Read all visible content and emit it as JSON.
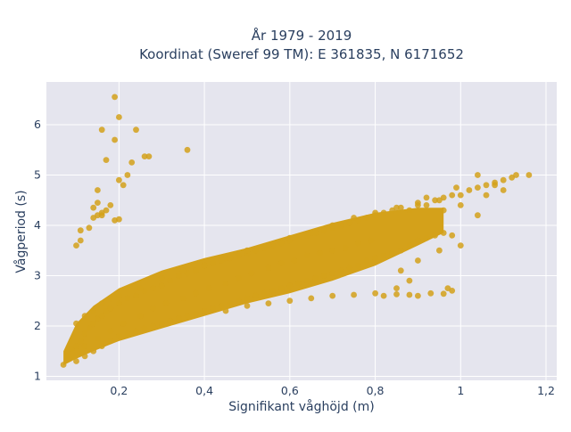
{
  "chart_data": {
    "type": "scatter",
    "title_line1": "År 1979 - 2019",
    "title_line2": "Koordinat (Sweref 99 TM): E 361835, N 6171652",
    "xlabel": "Signifikant våghöjd (m)",
    "ylabel": "Vågperiod (s)",
    "xlim": [
      0.03,
      1.225
    ],
    "ylim": [
      0.92,
      6.85
    ],
    "x_ticks": [
      0.2,
      0.4,
      0.6,
      0.8,
      1.0,
      1.2
    ],
    "x_tick_labels": [
      "0,2",
      "0,4",
      "0,6",
      "0,8",
      "1",
      "1,2"
    ],
    "y_ticks": [
      1,
      2,
      3,
      4,
      5,
      6
    ],
    "y_tick_labels": [
      "1",
      "2",
      "3",
      "4",
      "5",
      "6"
    ],
    "grid": true,
    "marker_color": "#d4a11a",
    "plot_bg": "#e5e5ee",
    "points": [
      [
        0.07,
        1.23
      ],
      [
        0.08,
        1.4
      ],
      [
        0.09,
        1.55
      ],
      [
        0.1,
        1.6
      ],
      [
        0.11,
        1.7
      ],
      [
        0.12,
        1.85
      ],
      [
        0.13,
        1.95
      ],
      [
        0.14,
        2.05
      ],
      [
        0.15,
        2.15
      ],
      [
        0.16,
        2.2
      ],
      [
        0.17,
        2.3
      ],
      [
        0.18,
        2.35
      ],
      [
        0.2,
        2.45
      ],
      [
        0.22,
        2.55
      ],
      [
        0.24,
        2.6
      ],
      [
        0.26,
        2.7
      ],
      [
        0.28,
        2.75
      ],
      [
        0.3,
        2.8
      ],
      [
        0.32,
        2.9
      ],
      [
        0.34,
        3.0
      ],
      [
        0.36,
        3.05
      ],
      [
        0.38,
        3.1
      ],
      [
        0.4,
        3.2
      ],
      [
        0.42,
        3.25
      ],
      [
        0.44,
        3.3
      ],
      [
        0.46,
        3.35
      ],
      [
        0.48,
        3.4
      ],
      [
        0.5,
        3.45
      ],
      [
        0.52,
        3.5
      ],
      [
        0.54,
        3.55
      ],
      [
        0.56,
        3.6
      ],
      [
        0.58,
        3.65
      ],
      [
        0.6,
        3.7
      ],
      [
        0.62,
        3.75
      ],
      [
        0.64,
        3.8
      ],
      [
        0.66,
        3.85
      ],
      [
        0.68,
        3.9
      ],
      [
        0.7,
        3.95
      ],
      [
        0.72,
        4.0
      ],
      [
        0.74,
        4.05
      ],
      [
        0.76,
        4.1
      ],
      [
        0.78,
        4.15
      ],
      [
        0.8,
        4.2
      ],
      [
        0.82,
        4.25
      ],
      [
        0.84,
        4.3
      ],
      [
        0.86,
        4.35
      ],
      [
        0.88,
        4.3
      ],
      [
        0.9,
        4.4
      ],
      [
        0.92,
        4.4
      ],
      [
        0.94,
        4.5
      ],
      [
        0.96,
        4.55
      ],
      [
        0.98,
        4.6
      ],
      [
        1.0,
        4.6
      ],
      [
        1.02,
        4.7
      ],
      [
        1.04,
        4.75
      ],
      [
        1.06,
        4.8
      ],
      [
        1.08,
        4.85
      ],
      [
        1.1,
        4.9
      ],
      [
        1.12,
        4.95
      ],
      [
        1.16,
        5.0
      ],
      [
        0.1,
        1.3
      ],
      [
        0.12,
        1.4
      ],
      [
        0.14,
        1.5
      ],
      [
        0.16,
        1.6
      ],
      [
        0.18,
        1.7
      ],
      [
        0.2,
        1.8
      ],
      [
        0.22,
        1.85
      ],
      [
        0.24,
        1.9
      ],
      [
        0.26,
        1.95
      ],
      [
        0.28,
        2.0
      ],
      [
        0.3,
        2.05
      ],
      [
        0.32,
        2.1
      ],
      [
        0.34,
        2.15
      ],
      [
        0.36,
        2.2
      ],
      [
        0.38,
        2.25
      ],
      [
        0.4,
        2.3
      ],
      [
        0.42,
        2.35
      ],
      [
        0.44,
        2.4
      ],
      [
        0.46,
        2.45
      ],
      [
        0.48,
        2.5
      ],
      [
        0.5,
        2.55
      ],
      [
        0.52,
        2.6
      ],
      [
        0.54,
        2.65
      ],
      [
        0.56,
        2.7
      ],
      [
        0.58,
        2.75
      ],
      [
        0.6,
        2.8
      ],
      [
        0.62,
        2.85
      ],
      [
        0.64,
        2.9
      ],
      [
        0.66,
        2.95
      ],
      [
        0.68,
        3.0
      ],
      [
        0.7,
        3.05
      ],
      [
        0.72,
        3.1
      ],
      [
        0.74,
        3.15
      ],
      [
        0.76,
        3.2
      ],
      [
        0.78,
        3.3
      ],
      [
        0.8,
        3.35
      ],
      [
        0.82,
        3.4
      ],
      [
        0.84,
        3.45
      ],
      [
        0.86,
        3.5
      ],
      [
        0.88,
        3.6
      ],
      [
        0.9,
        3.7
      ],
      [
        0.92,
        3.75
      ],
      [
        0.94,
        3.8
      ],
      [
        0.96,
        3.85
      ],
      [
        0.98,
        3.8
      ],
      [
        0.12,
        1.6
      ],
      [
        0.15,
        1.75
      ],
      [
        0.18,
        1.9
      ],
      [
        0.21,
        2.05
      ],
      [
        0.25,
        2.2
      ],
      [
        0.28,
        2.35
      ],
      [
        0.31,
        2.45
      ],
      [
        0.35,
        2.55
      ],
      [
        0.38,
        2.65
      ],
      [
        0.41,
        2.75
      ],
      [
        0.45,
        2.85
      ],
      [
        0.48,
        2.95
      ],
      [
        0.51,
        3.05
      ],
      [
        0.55,
        3.15
      ],
      [
        0.58,
        3.25
      ],
      [
        0.61,
        3.3
      ],
      [
        0.64,
        3.4
      ],
      [
        0.67,
        3.45
      ],
      [
        0.7,
        3.5
      ],
      [
        0.73,
        3.55
      ],
      [
        0.76,
        3.65
      ],
      [
        0.79,
        3.7
      ],
      [
        0.45,
        2.3
      ],
      [
        0.5,
        2.4
      ],
      [
        0.55,
        2.45
      ],
      [
        0.6,
        2.5
      ],
      [
        0.65,
        2.55
      ],
      [
        0.7,
        2.6
      ],
      [
        0.75,
        2.62
      ],
      [
        0.8,
        2.65
      ],
      [
        0.82,
        2.6
      ],
      [
        0.85,
        2.63
      ],
      [
        0.88,
        2.62
      ],
      [
        0.9,
        2.6
      ],
      [
        0.93,
        2.65
      ],
      [
        0.96,
        2.64
      ],
      [
        0.98,
        2.7
      ],
      [
        0.97,
        2.75
      ],
      [
        0.85,
        2.75
      ],
      [
        0.88,
        2.9
      ],
      [
        0.86,
        3.1
      ],
      [
        0.9,
        3.3
      ],
      [
        0.95,
        3.5
      ],
      [
        1.0,
        3.6
      ],
      [
        0.1,
        2.05
      ],
      [
        0.12,
        2.2
      ],
      [
        0.14,
        2.3
      ],
      [
        0.16,
        2.45
      ],
      [
        0.18,
        2.55
      ],
      [
        0.2,
        2.6
      ],
      [
        0.25,
        2.75
      ],
      [
        0.3,
        2.95
      ],
      [
        0.35,
        3.1
      ],
      [
        0.4,
        3.2
      ],
      [
        0.45,
        3.35
      ],
      [
        0.5,
        3.5
      ],
      [
        0.55,
        3.6
      ],
      [
        0.6,
        3.75
      ],
      [
        0.65,
        3.85
      ],
      [
        0.7,
        4.0
      ],
      [
        0.75,
        4.15
      ],
      [
        0.8,
        4.25
      ],
      [
        0.85,
        4.35
      ],
      [
        0.9,
        4.45
      ],
      [
        0.95,
        4.5
      ],
      [
        1.0,
        4.4
      ],
      [
        1.04,
        4.2
      ],
      [
        1.06,
        4.6
      ],
      [
        1.08,
        4.8
      ],
      [
        1.1,
        4.7
      ],
      [
        1.13,
        5.0
      ],
      [
        1.04,
        5.0
      ],
      [
        0.99,
        4.75
      ],
      [
        0.92,
        4.55
      ],
      [
        0.96,
        4.3
      ],
      [
        0.1,
        3.6
      ],
      [
        0.11,
        3.7
      ],
      [
        0.11,
        3.9
      ],
      [
        0.13,
        3.95
      ],
      [
        0.14,
        4.15
      ],
      [
        0.15,
        4.2
      ],
      [
        0.16,
        4.2
      ],
      [
        0.17,
        4.3
      ],
      [
        0.18,
        4.4
      ],
      [
        0.19,
        4.1
      ],
      [
        0.2,
        4.12
      ],
      [
        0.2,
        4.9
      ],
      [
        0.21,
        4.8
      ],
      [
        0.15,
        4.45
      ],
      [
        0.15,
        4.7
      ],
      [
        0.17,
        5.3
      ],
      [
        0.22,
        5.0
      ],
      [
        0.23,
        5.25
      ],
      [
        0.24,
        5.9
      ],
      [
        0.26,
        5.37
      ],
      [
        0.27,
        5.37
      ],
      [
        0.19,
        5.7
      ],
      [
        0.16,
        5.9
      ],
      [
        0.2,
        6.15
      ],
      [
        0.19,
        6.55
      ],
      [
        0.36,
        5.5
      ],
      [
        0.14,
        4.35
      ],
      [
        0.16,
        4.25
      ]
    ]
  }
}
